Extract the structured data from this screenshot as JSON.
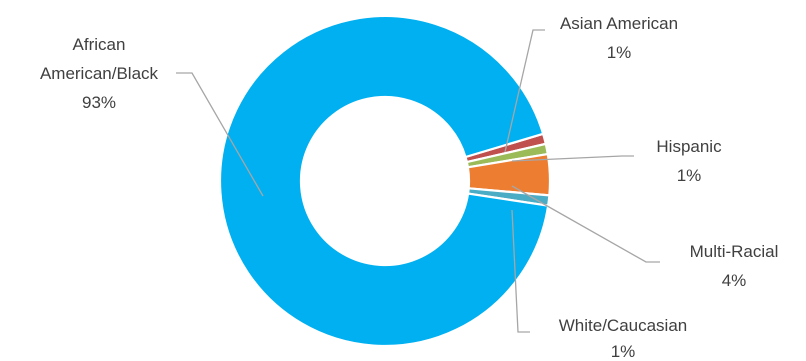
{
  "chart_data": {
    "type": "pie",
    "variant": "donut",
    "title": "",
    "legend": "none",
    "labels_position": "outside-with-leader-lines",
    "slices": [
      {
        "name": "Asian American",
        "value": 1,
        "label": "1%",
        "color": "#c0504d"
      },
      {
        "name": "Hispanic",
        "value": 1,
        "label": "1%",
        "color": "#9bbb59"
      },
      {
        "name": "Multi-Racial",
        "value": 4,
        "label": "4%",
        "color": "#ed7d31"
      },
      {
        "name": "White/Caucasian",
        "value": 1,
        "label": "1%",
        "color": "#4bacc6"
      },
      {
        "name": "African American/Black",
        "value": 93,
        "label": "93%",
        "color": "#00b0f0"
      }
    ],
    "label_lines": {
      "African American/Black": [
        "African",
        "American/Black"
      ]
    }
  }
}
